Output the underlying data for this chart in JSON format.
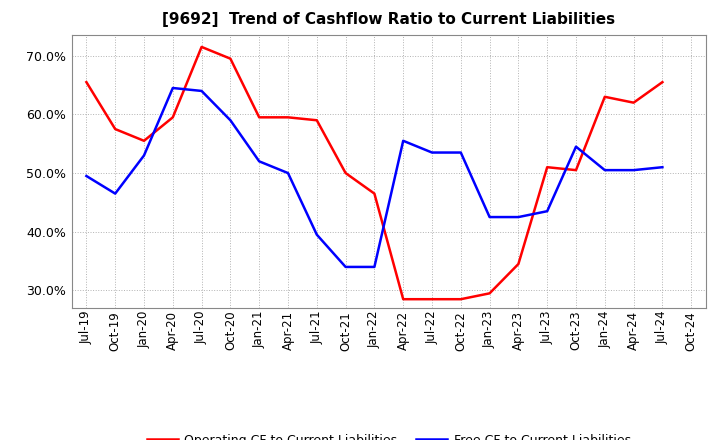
{
  "title": "[9692]  Trend of Cashflow Ratio to Current Liabilities",
  "ylim": [
    0.27,
    0.735
  ],
  "yticks": [
    0.3,
    0.4,
    0.5,
    0.6,
    0.7
  ],
  "x_labels": [
    "Jul-19",
    "Oct-19",
    "Jan-20",
    "Apr-20",
    "Jul-20",
    "Oct-20",
    "Jan-21",
    "Apr-21",
    "Jul-21",
    "Oct-21",
    "Jan-22",
    "Apr-22",
    "Jul-22",
    "Oct-22",
    "Jan-23",
    "Apr-23",
    "Jul-23",
    "Oct-23",
    "Jan-24",
    "Apr-24",
    "Jul-24",
    "Oct-24"
  ],
  "operating_cf": [
    0.655,
    0.575,
    0.555,
    0.595,
    0.715,
    0.695,
    0.595,
    0.595,
    0.59,
    0.5,
    0.465,
    0.285,
    0.285,
    0.285,
    0.295,
    0.345,
    0.51,
    0.505,
    0.63,
    0.62,
    0.655,
    null
  ],
  "free_cf": [
    0.495,
    0.465,
    0.53,
    0.645,
    0.64,
    0.59,
    0.52,
    0.5,
    0.395,
    0.34,
    0.34,
    0.555,
    0.535,
    0.535,
    0.425,
    0.425,
    0.435,
    0.545,
    0.505,
    0.505,
    0.51,
    null
  ],
  "operating_color": "#ff0000",
  "free_color": "#0000ff",
  "bg_color": "#ffffff",
  "plot_bg_color": "#ffffff",
  "grid_color": "#aaaaaa",
  "line_width": 1.8,
  "legend_operating": "Operating CF to Current Liabilities",
  "legend_free": "Free CF to Current Liabilities",
  "title_fontsize": 11,
  "tick_fontsize": 8.5,
  "ytick_fontsize": 9
}
